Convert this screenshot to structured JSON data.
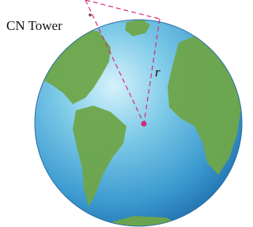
{
  "labels": {
    "tower": "CN Tower",
    "radius": "r"
  }
}
